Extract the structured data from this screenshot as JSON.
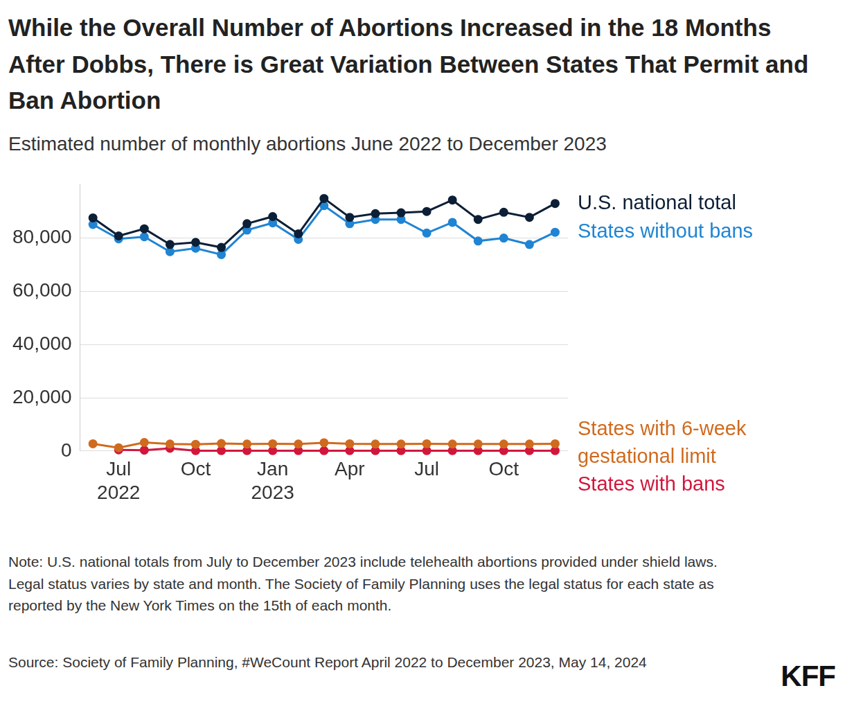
{
  "chart_data": {
    "type": "line",
    "title": "While the Overall Number of Abortions Increased in the 18 Months After Dobbs, There is Great Variation Between States That Permit and Ban Abortion",
    "subtitle": "Estimated number of monthly abortions June 2022 to December 2023",
    "categories": [
      null,
      "Jul 2022",
      null,
      null,
      "Oct",
      null,
      null,
      "Jan 2023",
      null,
      null,
      "Apr",
      null,
      null,
      "Jul",
      null,
      null,
      "Oct",
      null,
      null
    ],
    "series": [
      {
        "name": "U.S. national total",
        "color": "#0c1f36",
        "marker": "circle",
        "values": [
          87600,
          80800,
          83500,
          77600,
          78400,
          76500,
          85400,
          88100,
          81600,
          94900,
          87800,
          89200,
          89500,
          90000,
          94300,
          87000,
          89700,
          87800,
          93000
        ]
      },
      {
        "name": "States without bans",
        "color": "#1f84d3",
        "marker": "circle",
        "values": [
          85100,
          79700,
          80500,
          74900,
          76200,
          73800,
          83000,
          85700,
          79500,
          92200,
          85400,
          87000,
          87000,
          81900,
          85900,
          78900,
          80000,
          77600,
          82200
        ]
      },
      {
        "name": "States with 6-week gestational limit",
        "color": "#d06a1e",
        "marker": "circle",
        "values": [
          2700,
          1200,
          3200,
          2600,
          2500,
          2800,
          2600,
          2700,
          2600,
          3100,
          2700,
          2600,
          2600,
          2700,
          2600,
          2600,
          2600,
          2600,
          2700
        ]
      },
      {
        "name": "States with bans",
        "color": "#d2163c",
        "marker": "circle",
        "values": [
          null,
          400,
          300,
          1000,
          100,
          100,
          100,
          100,
          100,
          100,
          100,
          100,
          100,
          100,
          100,
          100,
          100,
          100,
          100
        ]
      }
    ],
    "ylim": [
      0,
      100000
    ],
    "yticks": [
      0,
      {
        "value": 20000,
        "label": "20,000"
      },
      {
        "value": 40000,
        "label": "40,000"
      },
      {
        "value": 60000,
        "label": "60,000"
      },
      {
        "value": 80000,
        "label": "80,000"
      }
    ],
    "grid": true,
    "note": "Note: U.S. national totals from July to December 2023 include telehealth abortions provided under shield laws. Legal status varies by state and month. The Society of Family Planning uses the legal status for each state as reported by the New York Times on the 15th of each month.",
    "source": "Source: Society of Family Planning, #WeCount Report April 2022 to December 2023, May 14, 2024",
    "logo": "KFF"
  }
}
